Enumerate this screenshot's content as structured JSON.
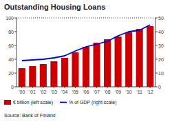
{
  "chart_data": {
    "type": "bar",
    "title": "Outstanding Housing Loans",
    "categories": [
      "'00",
      "'01",
      "'02",
      "'03",
      "'04",
      "'05",
      "'06",
      "'07",
      "'08",
      "'09",
      "'10",
      "'11",
      "'12"
    ],
    "series": [
      {
        "name": "€ billion (left scale)",
        "type": "bar",
        "color": "#cc0000",
        "values": [
          27,
          30,
          33,
          37,
          42,
          50,
          58,
          64,
          69,
          73,
          79,
          84,
          88
        ]
      },
      {
        "name": "% of GDP (right scale)",
        "type": "line",
        "color": "#0000cc",
        "axis": "y2",
        "values": [
          19,
          19.5,
          20,
          21,
          22.5,
          26,
          29,
          31,
          33,
          37,
          40,
          41,
          45
        ]
      }
    ],
    "ylim": [
      0,
      100
    ],
    "yticks": [
      0,
      20,
      40,
      60,
      80,
      100
    ],
    "y2lim": [
      0,
      50
    ],
    "y2ticks": [
      0,
      10,
      20,
      30,
      40,
      50
    ],
    "annotations": [
      "Source: Bank of Finland"
    ],
    "grid": false,
    "legend": "lower left"
  }
}
